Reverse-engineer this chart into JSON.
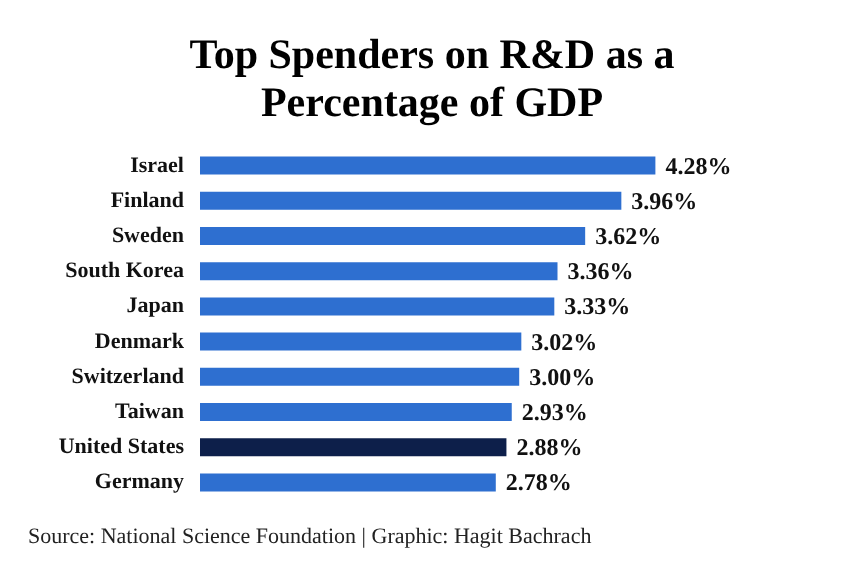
{
  "chart_data": {
    "type": "bar",
    "orientation": "horizontal",
    "title": "Top Spenders on R&D as a\nPercentage of GDP",
    "categories": [
      "Israel",
      "Finland",
      "Sweden",
      "South Korea",
      "Japan",
      "Denmark",
      "Switzerland",
      "Taiwan",
      "United States",
      "Germany"
    ],
    "values": [
      4.28,
      3.96,
      3.62,
      3.36,
      3.33,
      3.02,
      3.0,
      2.93,
      2.88,
      2.78
    ],
    "colors": [
      "#2e6fd0",
      "#2e6fd0",
      "#2e6fd0",
      "#2e6fd0",
      "#2e6fd0",
      "#2e6fd0",
      "#2e6fd0",
      "#2e6fd0",
      "#0d1f4a",
      "#2e6fd0"
    ],
    "value_labels": [
      "4.28%",
      "3.96%",
      "3.62%",
      "3.36%",
      "3.33%",
      "3.02%",
      "3.00%",
      "2.93%",
      "2.88%",
      "2.78%"
    ],
    "tick_labels": "y",
    "annotations": [
      "Source: National Science Foundation | Graphic: Hagit Bachrach"
    ]
  }
}
